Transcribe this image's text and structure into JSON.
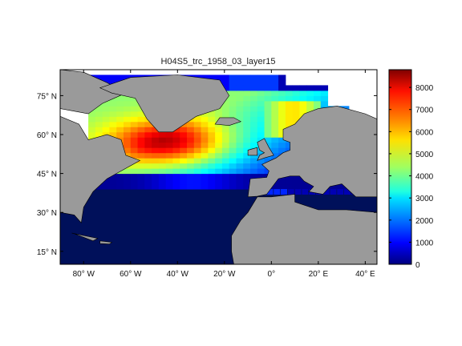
{
  "title": "H04S5_trc_1958_03_layer15",
  "map": {
    "lon_range": [
      -90,
      45
    ],
    "lat_range": [
      10,
      85
    ],
    "lon_ticks": [
      {
        "value": -80,
        "label": "80° W"
      },
      {
        "value": -60,
        "label": "60° W"
      },
      {
        "value": -40,
        "label": "40° W"
      },
      {
        "value": -20,
        "label": "20° W"
      },
      {
        "value": 0,
        "label": "0°"
      },
      {
        "value": 20,
        "label": "20° E"
      },
      {
        "value": 40,
        "label": "40° E"
      }
    ],
    "lat_ticks": [
      {
        "value": 75,
        "label": "75° N"
      },
      {
        "value": 60,
        "label": "60° N"
      },
      {
        "value": 45,
        "label": "45° N"
      },
      {
        "value": 30,
        "label": "30° N"
      },
      {
        "value": 15,
        "label": "15° N"
      }
    ],
    "land_color": "#9a9a9a",
    "ocean_low_color": "#00105a"
  },
  "colorbar": {
    "min": 0,
    "max": 8800,
    "ticks": [
      "0",
      "1000",
      "2000",
      "3000",
      "4000",
      "5000",
      "6000",
      "7000",
      "8000"
    ],
    "colormap": "jet"
  }
}
